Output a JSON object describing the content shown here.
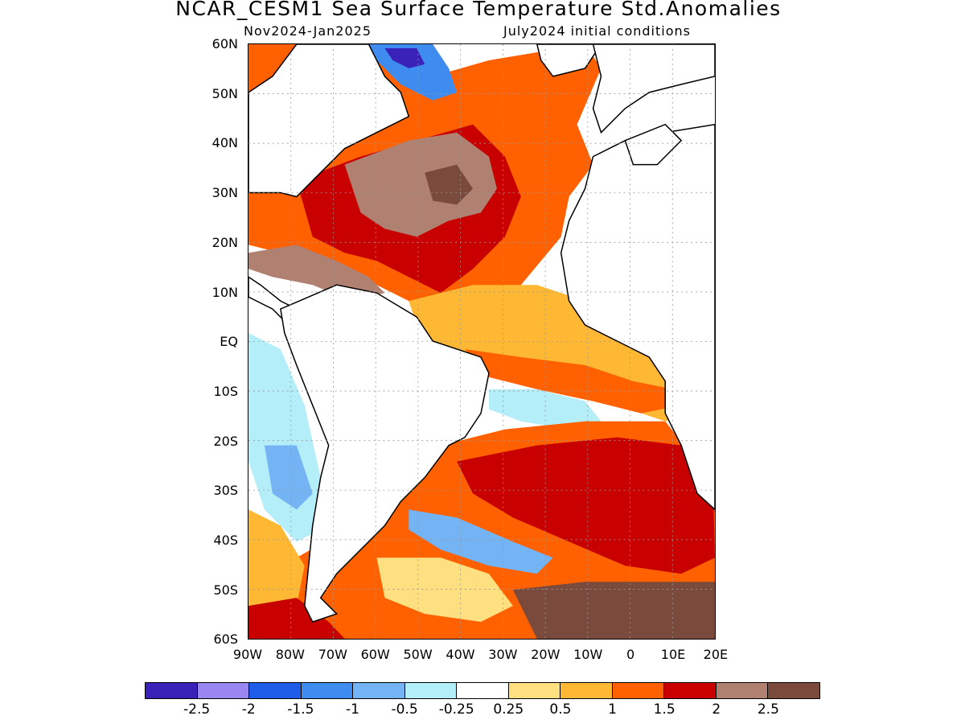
{
  "title": "NCAR_CESM1 Sea Surface Temperature Std.Anomalies",
  "subtitle_left": "Nov2024-Jan2025",
  "subtitle_right": "July2024 initial conditions",
  "lat_labels": [
    "60N",
    "50N",
    "40N",
    "30N",
    "20N",
    "10N",
    "EQ",
    "10S",
    "20S",
    "30S",
    "40S",
    "50S",
    "60S"
  ],
  "lon_labels": [
    "90W",
    "80W",
    "70W",
    "60W",
    "50W",
    "40W",
    "30W",
    "20W",
    "10W",
    "0",
    "10E",
    "20E"
  ],
  "colorbar": {
    "colors": [
      "#3a22b8",
      "#9a86f0",
      "#1f5ce8",
      "#3f8cf0",
      "#74b3f4",
      "#b4eef8",
      "#ffffff",
      "#ffe080",
      "#ffb833",
      "#ff6000",
      "#c80000",
      "#b08070",
      "#7a4a3c"
    ],
    "labels": [
      "-2.5",
      "-2",
      "-1.5",
      "-1",
      "-0.5",
      "-0.25",
      "0.25",
      "0.5",
      "1",
      "1.5",
      "2",
      "2.5"
    ]
  }
}
